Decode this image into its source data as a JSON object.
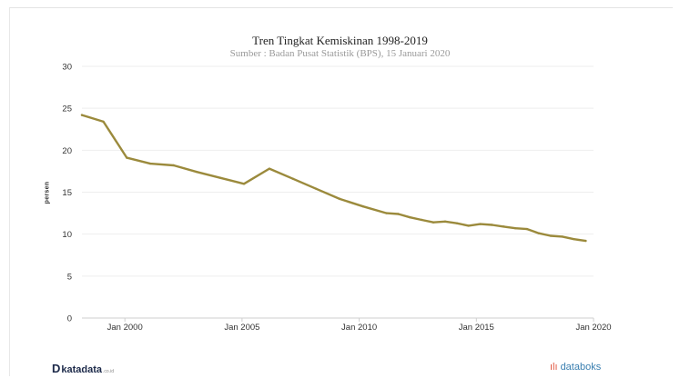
{
  "chart_data": {
    "type": "line",
    "title": "Tren Tingkat Kemiskinan 1998-2019",
    "subtitle": "Sumber : Badan Pusat Statistik (BPS), 15 Januari 2020",
    "ylabel": "persen",
    "xlabel": "",
    "ylim": [
      0,
      30
    ],
    "yticks": [
      0,
      5,
      10,
      15,
      20,
      25,
      30
    ],
    "xticks": [
      "Jan 2000",
      "Jan 2005",
      "Jan 2010",
      "Jan 2015",
      "Jan 2020"
    ],
    "grid": true,
    "color": "#9b8a3c",
    "series": [
      {
        "x": [
          "1998-03",
          "1999-02",
          "2000-02",
          "2001-02",
          "2002-02",
          "2003-02",
          "2004-02",
          "2005-02",
          "2006-03",
          "2007-03",
          "2008-03",
          "2009-03",
          "2010-03",
          "2011-03",
          "2011-09",
          "2012-03",
          "2012-09",
          "2013-03",
          "2013-09",
          "2014-03",
          "2014-09",
          "2015-03",
          "2015-09",
          "2016-03",
          "2016-09",
          "2017-03",
          "2017-09",
          "2018-03",
          "2018-09",
          "2019-03",
          "2019-09"
        ],
        "values": [
          24.2,
          23.4,
          19.1,
          18.4,
          18.2,
          17.4,
          16.7,
          16.0,
          17.8,
          16.6,
          15.4,
          14.2,
          13.3,
          12.5,
          12.4,
          12.0,
          11.7,
          11.4,
          11.5,
          11.3,
          11.0,
          11.2,
          11.1,
          10.9,
          10.7,
          10.6,
          10.1,
          9.8,
          9.7,
          9.4,
          9.2
        ]
      }
    ]
  },
  "branding": {
    "left": "katadata",
    "left_small": ".co.id",
    "right": "databoks"
  }
}
